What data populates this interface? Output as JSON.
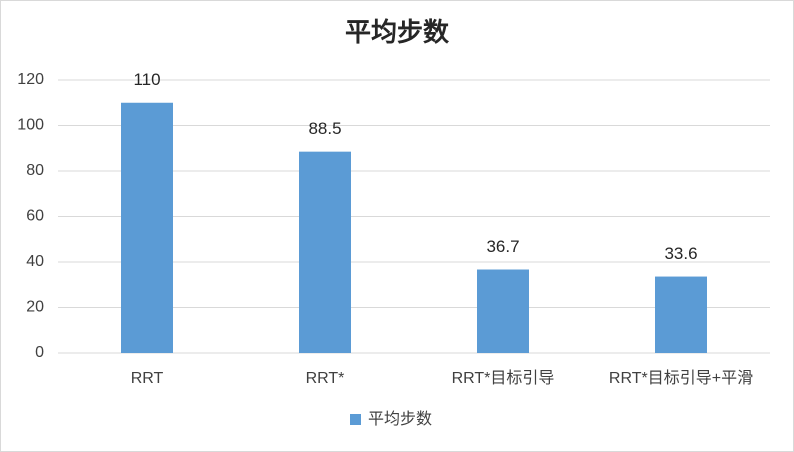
{
  "chart_data": {
    "type": "bar",
    "title": "平均步数",
    "categories": [
      "RRT",
      "RRT*",
      "RRT*目标引导",
      "RRT*目标引导+平滑"
    ],
    "series": [
      {
        "name": "平均步数",
        "color": "#5b9bd5",
        "values": [
          110,
          88.5,
          36.7,
          33.6
        ]
      }
    ],
    "ylim": [
      0,
      120
    ],
    "yticks": [
      0,
      20,
      40,
      60,
      80,
      100,
      120
    ],
    "grid": true,
    "legend": "bottom"
  }
}
